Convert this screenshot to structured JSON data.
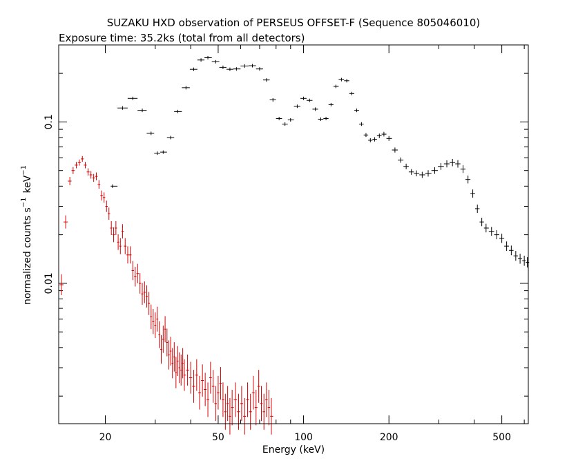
{
  "chart_data": {
    "type": "scatter",
    "title": "SUZAKU HXD observation of PERSEUS OFFSET-F (Sequence 805046010)",
    "subtitle": "Exposure time: 35.2ks (total from all detectors)",
    "xlabel": "Energy (keV)",
    "ylabel": "normalized counts s",
    "ylabel_sup1": "−1",
    "ylabel_unit": "keV",
    "ylabel_sup2": "−1",
    "x_scale": "log",
    "y_scale": "log",
    "xlim": [
      13.7,
      620
    ],
    "ylim": [
      0.00135,
      0.3
    ],
    "xticks": [
      20,
      50,
      100,
      200,
      500
    ],
    "xtick_labels": [
      "20",
      "50",
      "100",
      "200",
      "500"
    ],
    "yticks": [
      0.01,
      0.1
    ],
    "ytick_labels": [
      "0.01",
      "0.1"
    ],
    "grid": false,
    "series": [
      {
        "color": "#d40000",
        "points": [
          {
            "x": 14.0,
            "y": 0.0098
          },
          {
            "x": 14.5,
            "y": 0.024
          },
          {
            "x": 15.0,
            "y": 0.043
          },
          {
            "x": 15.4,
            "y": 0.05
          },
          {
            "x": 15.8,
            "y": 0.054
          },
          {
            "x": 16.2,
            "y": 0.056
          },
          {
            "x": 16.6,
            "y": 0.059
          },
          {
            "x": 17.0,
            "y": 0.054
          },
          {
            "x": 17.4,
            "y": 0.049
          },
          {
            "x": 17.8,
            "y": 0.047
          },
          {
            "x": 18.2,
            "y": 0.045
          },
          {
            "x": 18.6,
            "y": 0.046
          },
          {
            "x": 19.0,
            "y": 0.041
          },
          {
            "x": 19.4,
            "y": 0.035
          },
          {
            "x": 19.8,
            "y": 0.034
          },
          {
            "x": 20.2,
            "y": 0.03
          },
          {
            "x": 20.6,
            "y": 0.027
          },
          {
            "x": 21.0,
            "y": 0.022
          },
          {
            "x": 21.4,
            "y": 0.02
          },
          {
            "x": 21.8,
            "y": 0.022
          },
          {
            "x": 22.2,
            "y": 0.018
          },
          {
            "x": 22.6,
            "y": 0.017
          },
          {
            "x": 23.0,
            "y": 0.021
          },
          {
            "x": 23.5,
            "y": 0.017
          },
          {
            "x": 24.0,
            "y": 0.015
          },
          {
            "x": 24.5,
            "y": 0.015
          },
          {
            "x": 25.0,
            "y": 0.012
          },
          {
            "x": 25.5,
            "y": 0.011
          },
          {
            "x": 26.0,
            "y": 0.0115
          },
          {
            "x": 26.5,
            "y": 0.01
          },
          {
            "x": 27.0,
            "y": 0.0086
          },
          {
            "x": 27.5,
            "y": 0.0088
          },
          {
            "x": 28.0,
            "y": 0.0083
          },
          {
            "x": 28.5,
            "y": 0.0075
          },
          {
            "x": 29.0,
            "y": 0.0062
          },
          {
            "x": 29.5,
            "y": 0.0058
          },
          {
            "x": 30.0,
            "y": 0.0055
          },
          {
            "x": 30.5,
            "y": 0.006
          },
          {
            "x": 31.0,
            "y": 0.0048
          },
          {
            "x": 31.5,
            "y": 0.0039
          },
          {
            "x": 32.0,
            "y": 0.0045
          },
          {
            "x": 32.5,
            "y": 0.0052
          },
          {
            "x": 33.0,
            "y": 0.0043
          },
          {
            "x": 33.5,
            "y": 0.0036
          },
          {
            "x": 34.0,
            "y": 0.0038
          },
          {
            "x": 34.5,
            "y": 0.0032
          },
          {
            "x": 35.0,
            "y": 0.0035
          },
          {
            "x": 35.5,
            "y": 0.0028
          },
          {
            "x": 36.0,
            "y": 0.0033
          },
          {
            "x": 36.5,
            "y": 0.003
          },
          {
            "x": 37.0,
            "y": 0.0029
          },
          {
            "x": 37.5,
            "y": 0.0032
          },
          {
            "x": 38.0,
            "y": 0.0027
          },
          {
            "x": 39.0,
            "y": 0.0029
          },
          {
            "x": 40.0,
            "y": 0.0026
          },
          {
            "x": 41.0,
            "y": 0.0023
          },
          {
            "x": 42.0,
            "y": 0.0027
          },
          {
            "x": 43.0,
            "y": 0.0021
          },
          {
            "x": 44.0,
            "y": 0.0025
          },
          {
            "x": 45.0,
            "y": 0.0022
          },
          {
            "x": 46.0,
            "y": 0.0019
          },
          {
            "x": 47.0,
            "y": 0.0026
          },
          {
            "x": 48.0,
            "y": 0.0023
          },
          {
            "x": 49.0,
            "y": 0.0018
          },
          {
            "x": 50.0,
            "y": 0.0021
          },
          {
            "x": 51.0,
            "y": 0.0024
          },
          {
            "x": 52.0,
            "y": 0.0019
          },
          {
            "x": 53.0,
            "y": 0.0016
          },
          {
            "x": 54.0,
            "y": 0.0018
          },
          {
            "x": 55.0,
            "y": 0.0015
          },
          {
            "x": 56.0,
            "y": 0.0017
          },
          {
            "x": 57.5,
            "y": 0.0019
          },
          {
            "x": 59.0,
            "y": 0.0016
          },
          {
            "x": 60.5,
            "y": 0.0018
          },
          {
            "x": 62.0,
            "y": 0.0015
          },
          {
            "x": 63.5,
            "y": 0.0019
          },
          {
            "x": 65.0,
            "y": 0.0016
          },
          {
            "x": 66.5,
            "y": 0.0021
          },
          {
            "x": 68.0,
            "y": 0.0017
          },
          {
            "x": 69.5,
            "y": 0.0023
          },
          {
            "x": 71.0,
            "y": 0.0018
          },
          {
            "x": 72.5,
            "y": 0.0016
          },
          {
            "x": 74.0,
            "y": 0.0019
          },
          {
            "x": 75.5,
            "y": 0.0017
          },
          {
            "x": 77.0,
            "y": 0.0015
          }
        ]
      },
      {
        "color": "#000000",
        "points": [
          {
            "x": 21.2,
            "y": 0.04
          },
          {
            "x": 23.0,
            "y": 0.122
          },
          {
            "x": 25.0,
            "y": 0.14
          },
          {
            "x": 27.0,
            "y": 0.118
          },
          {
            "x": 29.0,
            "y": 0.085
          },
          {
            "x": 30.5,
            "y": 0.064
          },
          {
            "x": 32.0,
            "y": 0.065
          },
          {
            "x": 34.0,
            "y": 0.08
          },
          {
            "x": 36.0,
            "y": 0.116
          },
          {
            "x": 38.5,
            "y": 0.163
          },
          {
            "x": 41.0,
            "y": 0.212
          },
          {
            "x": 43.5,
            "y": 0.242
          },
          {
            "x": 46.0,
            "y": 0.25
          },
          {
            "x": 49.0,
            "y": 0.236
          },
          {
            "x": 52.0,
            "y": 0.218
          },
          {
            "x": 55.0,
            "y": 0.212
          },
          {
            "x": 58.0,
            "y": 0.213
          },
          {
            "x": 62.0,
            "y": 0.222
          },
          {
            "x": 66.0,
            "y": 0.223
          },
          {
            "x": 70.0,
            "y": 0.213
          },
          {
            "x": 74.0,
            "y": 0.182
          },
          {
            "x": 78.0,
            "y": 0.137
          },
          {
            "x": 82.0,
            "y": 0.105
          },
          {
            "x": 86.0,
            "y": 0.097
          },
          {
            "x": 90.0,
            "y": 0.103
          },
          {
            "x": 95.0,
            "y": 0.125
          },
          {
            "x": 100.0,
            "y": 0.14
          },
          {
            "x": 105.0,
            "y": 0.136
          },
          {
            "x": 110.0,
            "y": 0.12
          },
          {
            "x": 115.0,
            "y": 0.104
          },
          {
            "x": 120.0,
            "y": 0.105
          },
          {
            "x": 125.0,
            "y": 0.128
          },
          {
            "x": 130.0,
            "y": 0.166
          },
          {
            "x": 136.0,
            "y": 0.183
          },
          {
            "x": 142.0,
            "y": 0.18
          },
          {
            "x": 148.0,
            "y": 0.15
          },
          {
            "x": 154.0,
            "y": 0.118
          },
          {
            "x": 160.0,
            "y": 0.097
          },
          {
            "x": 166.0,
            "y": 0.083
          },
          {
            "x": 172.0,
            "y": 0.077
          },
          {
            "x": 178.0,
            "y": 0.078
          },
          {
            "x": 185.0,
            "y": 0.082
          },
          {
            "x": 192.0,
            "y": 0.084
          },
          {
            "x": 200.0,
            "y": 0.079
          },
          {
            "x": 210.0,
            "y": 0.067
          },
          {
            "x": 220.0,
            "y": 0.058
          },
          {
            "x": 230.0,
            "y": 0.053
          },
          {
            "x": 240.0,
            "y": 0.049
          },
          {
            "x": 250.0,
            "y": 0.048
          },
          {
            "x": 262.0,
            "y": 0.047
          },
          {
            "x": 275.0,
            "y": 0.048
          },
          {
            "x": 290.0,
            "y": 0.05
          },
          {
            "x": 305.0,
            "y": 0.053
          },
          {
            "x": 320.0,
            "y": 0.055
          },
          {
            "x": 335.0,
            "y": 0.056
          },
          {
            "x": 350.0,
            "y": 0.055
          },
          {
            "x": 365.0,
            "y": 0.051
          },
          {
            "x": 380.0,
            "y": 0.044
          },
          {
            "x": 395.0,
            "y": 0.036
          },
          {
            "x": 410.0,
            "y": 0.029
          },
          {
            "x": 425.0,
            "y": 0.024
          },
          {
            "x": 440.0,
            "y": 0.022
          },
          {
            "x": 460.0,
            "y": 0.021
          },
          {
            "x": 480.0,
            "y": 0.02
          },
          {
            "x": 500.0,
            "y": 0.019
          },
          {
            "x": 520.0,
            "y": 0.017
          },
          {
            "x": 540.0,
            "y": 0.016
          },
          {
            "x": 560.0,
            "y": 0.0148
          },
          {
            "x": 580.0,
            "y": 0.0142
          },
          {
            "x": 600.0,
            "y": 0.0138
          },
          {
            "x": 615.0,
            "y": 0.0135
          }
        ]
      }
    ]
  }
}
